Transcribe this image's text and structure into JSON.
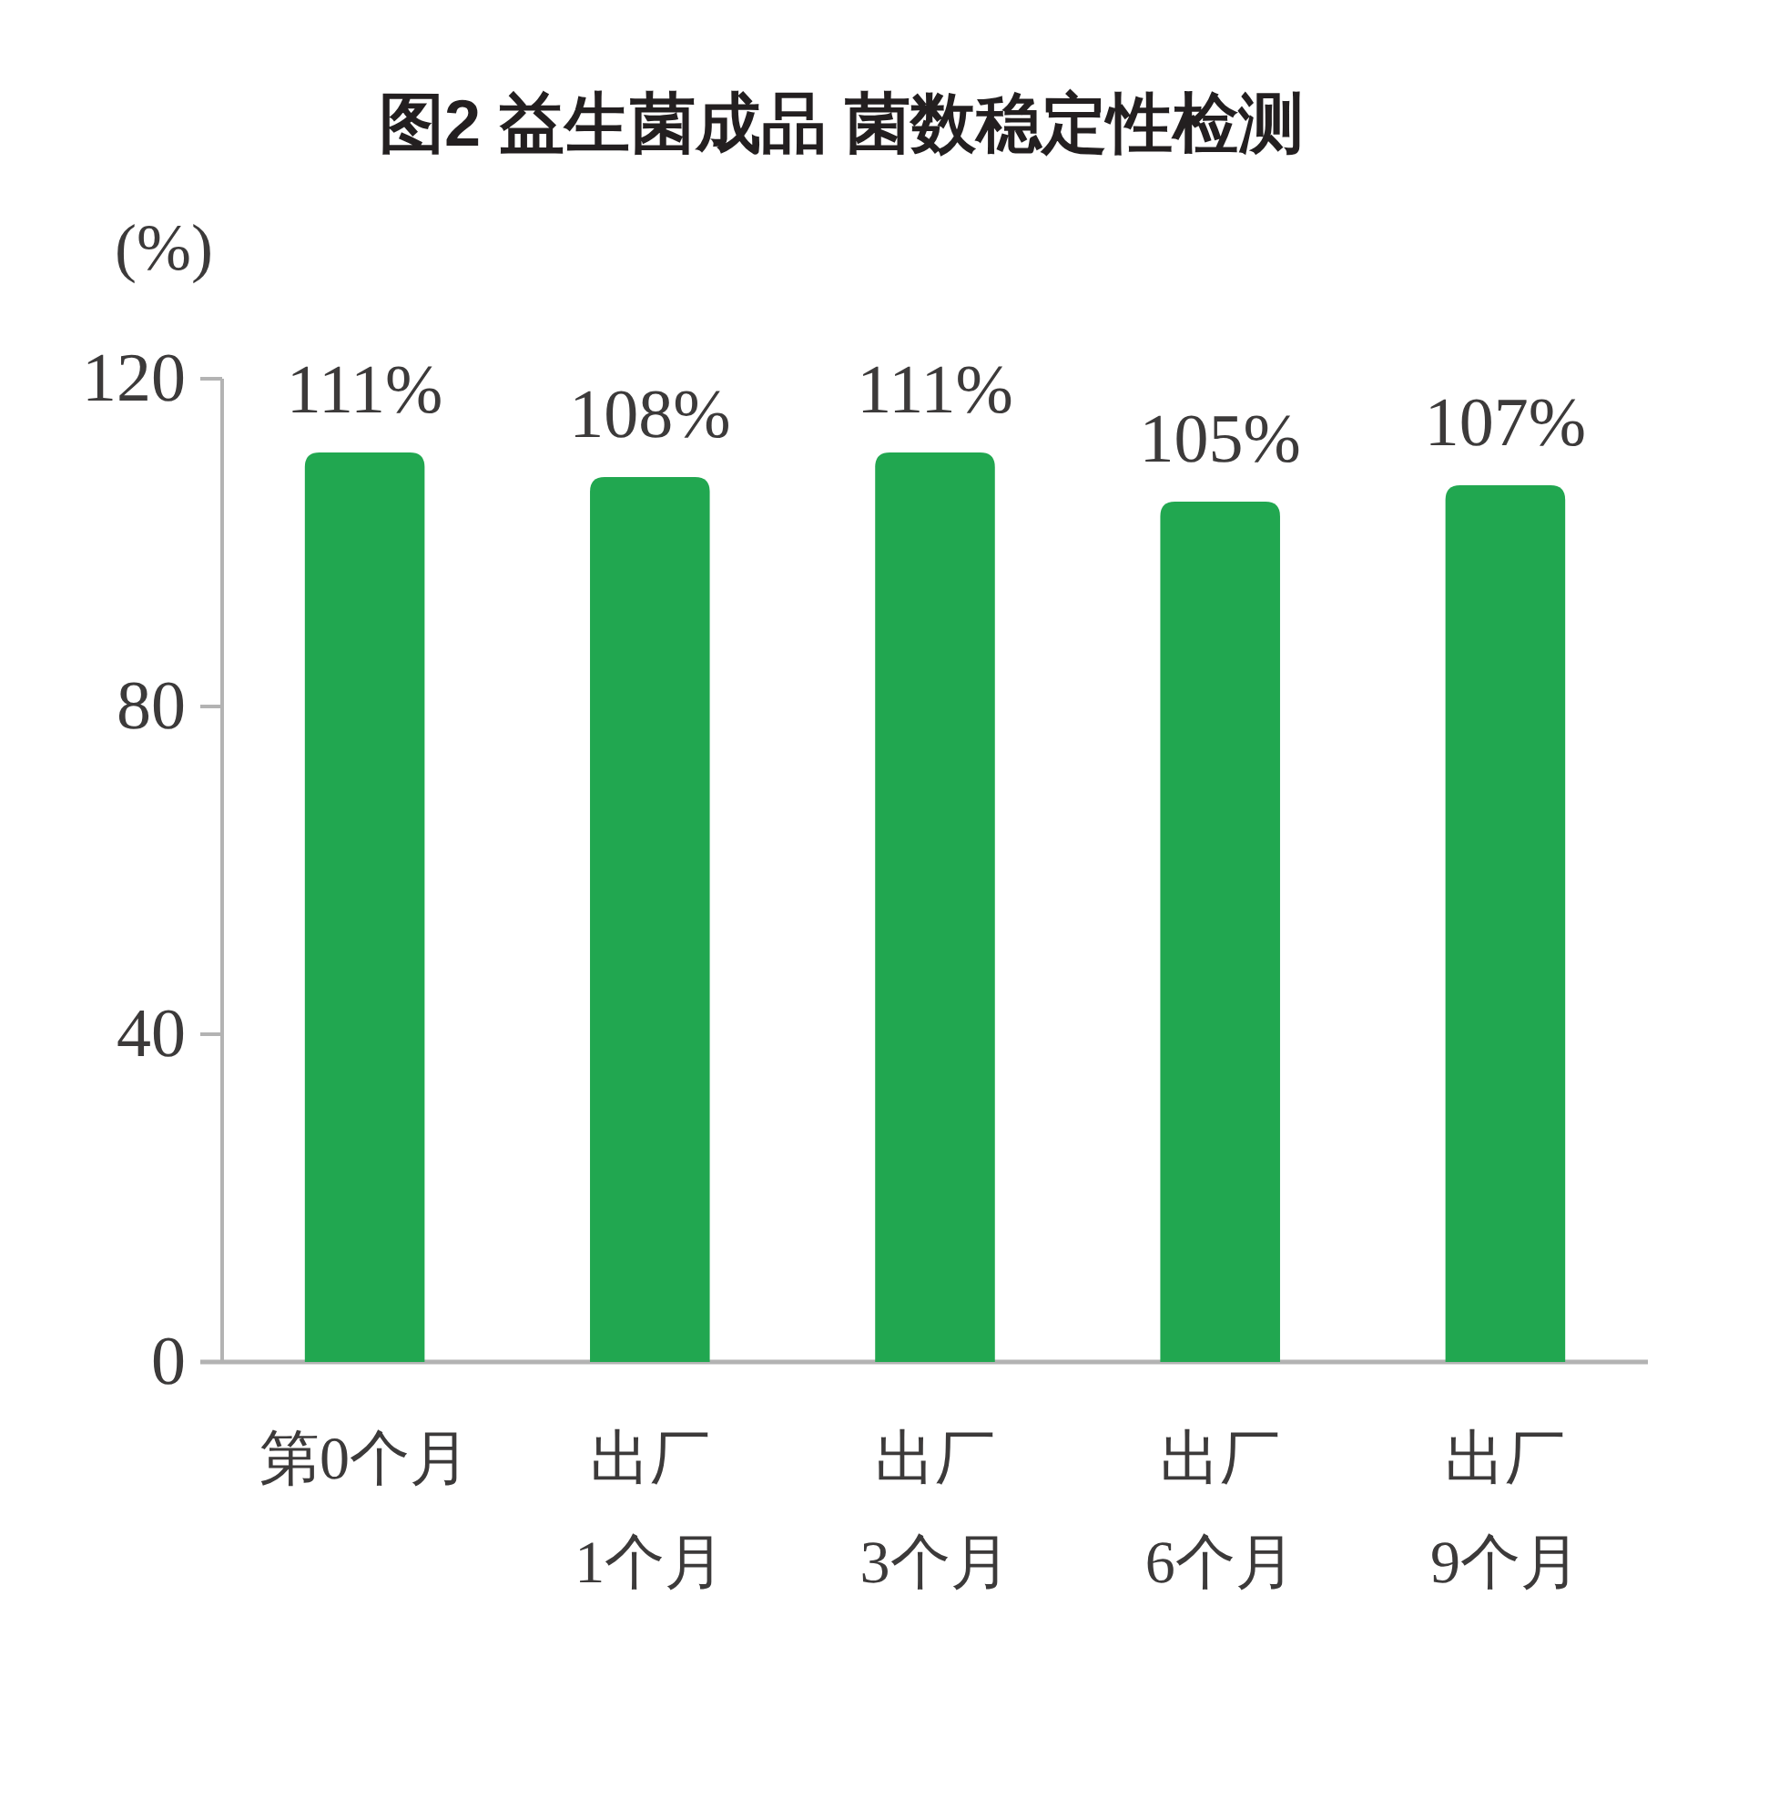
{
  "chart_data": {
    "type": "bar",
    "title": "图2 益生菌成品 菌数稳定性检测",
    "ylabel": "(%)",
    "categories": [
      "第0个月",
      "出厂\n1个月",
      "出厂\n3个月",
      "出厂\n6个月",
      "出厂\n9个月"
    ],
    "values": [
      111,
      108,
      111,
      105,
      107
    ],
    "value_labels": [
      "111%",
      "108%",
      "111%",
      "105%",
      "107%"
    ],
    "color": "#21a750",
    "ylim": [
      0,
      120
    ],
    "yticks": [
      0,
      40,
      80,
      120
    ]
  }
}
